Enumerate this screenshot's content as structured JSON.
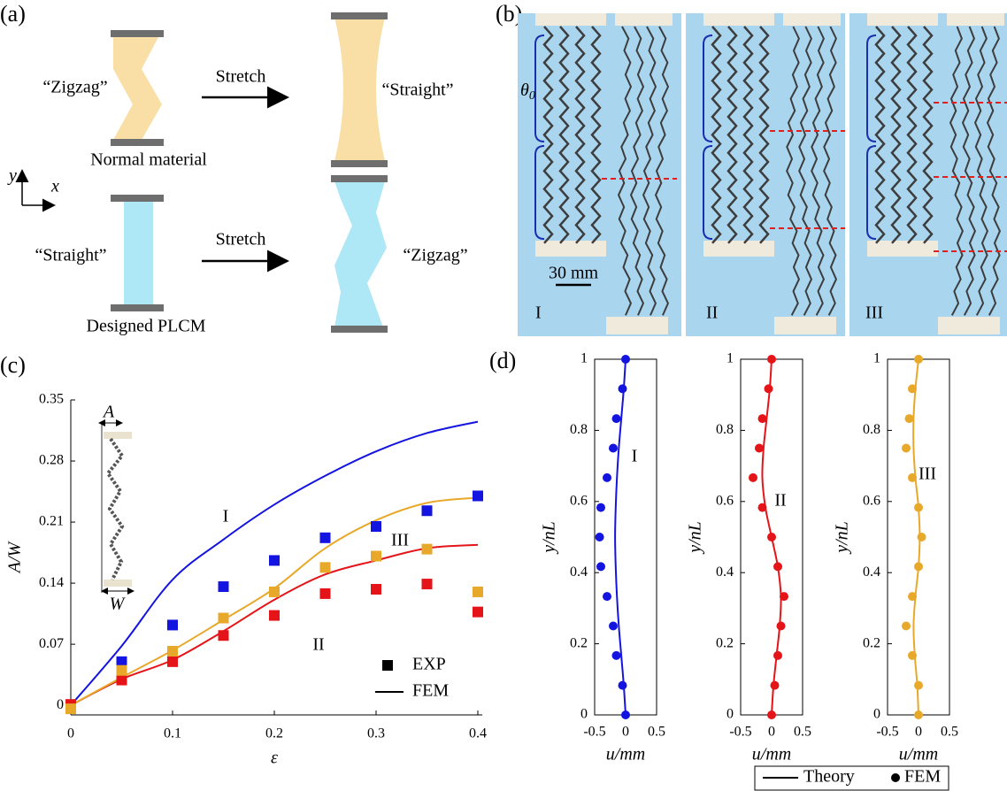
{
  "panel_a": {
    "label": "(a)",
    "top_before": "“Zigzag”",
    "top_action": "Stretch",
    "top_after": "“Straight”",
    "top_material": "Normal material",
    "axis_y": "y",
    "axis_x": "x",
    "bottom_before": "“Straight”",
    "bottom_action": "Stretch",
    "bottom_after": "“Zigzag”",
    "bottom_material": "Designed PLCM"
  },
  "panel_b": {
    "label": "(b)",
    "angle": "θ",
    "angle_sub": "0",
    "scale": "30 mm",
    "cases": [
      "I",
      "II",
      "III"
    ]
  },
  "panel_c": {
    "label": "(c)",
    "inset_amplitude": "A",
    "inset_width": "W"
  },
  "panel_d": {
    "label": "(d)",
    "legend": [
      "Theory",
      "FEM"
    ]
  },
  "chart_data": [
    {
      "type": "line",
      "x_label": "ε",
      "y_label": "A/W",
      "x": [
        0,
        0.05,
        0.1,
        0.15,
        0.2,
        0.25,
        0.3,
        0.35,
        0.4
      ],
      "xlim": [
        0,
        0.4
      ],
      "xticks": [
        0,
        0.1,
        0.2,
        0.3,
        0.4
      ],
      "ylim": [
        -0.011,
        0.35
      ],
      "yticks": [
        0,
        0.07,
        0.14,
        0.21,
        0.28,
        0.35
      ],
      "legend": [
        "EXP",
        "FEM"
      ],
      "series": [
        {
          "name": "I",
          "color": "#1414e0",
          "values": [
            0,
            0.068,
            0.144,
            0.19,
            0.23,
            0.263,
            0.291,
            0.312,
            0.325
          ],
          "exp_values": [
            0,
            0.05,
            0.092,
            0.136,
            0.166,
            0.192,
            0.205,
            0.223,
            0.24
          ]
        },
        {
          "name": "II",
          "color": "#e41418",
          "values": [
            0,
            0.03,
            0.052,
            0.085,
            0.121,
            0.15,
            0.166,
            0.18,
            0.184
          ],
          "exp_values": [
            0.001,
            0.029,
            0.05,
            0.08,
            0.103,
            0.128,
            0.133,
            0.139,
            0.107
          ]
        },
        {
          "name": "III",
          "color": "#e8a92a",
          "values": [
            0,
            0.032,
            0.063,
            0.098,
            0.134,
            0.18,
            0.212,
            0.232,
            0.238
          ],
          "exp_values": [
            -0.004,
            0.04,
            0.062,
            0.1,
            0.13,
            0.158,
            0.171,
            0.179,
            0.13
          ]
        }
      ]
    },
    {
      "type": "line",
      "orientation": "vertical",
      "x_label": "u/mm",
      "y_label": "y/nL",
      "annotation": "I",
      "color": "#1414e0",
      "y": [
        0,
        0.083,
        0.167,
        0.25,
        0.333,
        0.417,
        0.5,
        0.583,
        0.667,
        0.75,
        0.833,
        0.917,
        1
      ],
      "xlim": [
        -0.5,
        0.5
      ],
      "xticks": [
        -0.5,
        0,
        0.5
      ],
      "ylim": [
        0,
        1
      ],
      "yticks": [
        0,
        0.2,
        0.4,
        0.6,
        0.8,
        1
      ],
      "theory": [
        0,
        -0.03,
        -0.07,
        -0.11,
        -0.14,
        -0.16,
        -0.17,
        -0.16,
        -0.14,
        -0.11,
        -0.07,
        -0.03,
        0
      ],
      "fem": [
        0,
        -0.05,
        -0.15,
        -0.2,
        -0.3,
        -0.4,
        -0.42,
        -0.4,
        -0.3,
        -0.2,
        -0.15,
        -0.05,
        0
      ]
    },
    {
      "type": "line",
      "orientation": "vertical",
      "x_label": "u/mm",
      "y_label": "y/nL",
      "annotation": "II",
      "color": "#e41418",
      "y": [
        0,
        0.083,
        0.167,
        0.25,
        0.333,
        0.417,
        0.5,
        0.583,
        0.667,
        0.75,
        0.833,
        0.917,
        1
      ],
      "xlim": [
        -0.5,
        0.5
      ],
      "xticks": [
        -0.5,
        0,
        0.5
      ],
      "ylim": [
        0,
        1
      ],
      "yticks": [
        0,
        0.2,
        0.4,
        0.6,
        0.8,
        1
      ],
      "theory": [
        0,
        0.03,
        0.08,
        0.13,
        0.15,
        0.1,
        0,
        -0.1,
        -0.15,
        -0.13,
        -0.08,
        -0.03,
        0
      ],
      "fem": [
        0,
        0.05,
        0.1,
        0.15,
        0.2,
        0.1,
        0,
        -0.15,
        -0.3,
        -0.2,
        -0.15,
        -0.05,
        0
      ]
    },
    {
      "type": "line",
      "orientation": "vertical",
      "x_label": "u/mm",
      "y_label": "y/nL",
      "annotation": "III",
      "color": "#e8a92a",
      "y": [
        0,
        0.083,
        0.167,
        0.25,
        0.333,
        0.417,
        0.5,
        0.583,
        0.667,
        0.75,
        0.833,
        0.917,
        1
      ],
      "xlim": [
        -0.5,
        0.5
      ],
      "xticks": [
        -0.5,
        0,
        0.5
      ],
      "ylim": [
        0,
        1
      ],
      "yticks": [
        0,
        0.2,
        0.4,
        0.6,
        0.8,
        1
      ],
      "theory": [
        0,
        -0.02,
        -0.06,
        -0.08,
        -0.05,
        0,
        0.02,
        0,
        -0.05,
        -0.08,
        -0.08,
        -0.05,
        0
      ],
      "fem": [
        0,
        0,
        -0.1,
        -0.2,
        -0.1,
        0,
        0.05,
        0,
        -0.1,
        -0.2,
        -0.15,
        -0.1,
        0
      ]
    }
  ]
}
